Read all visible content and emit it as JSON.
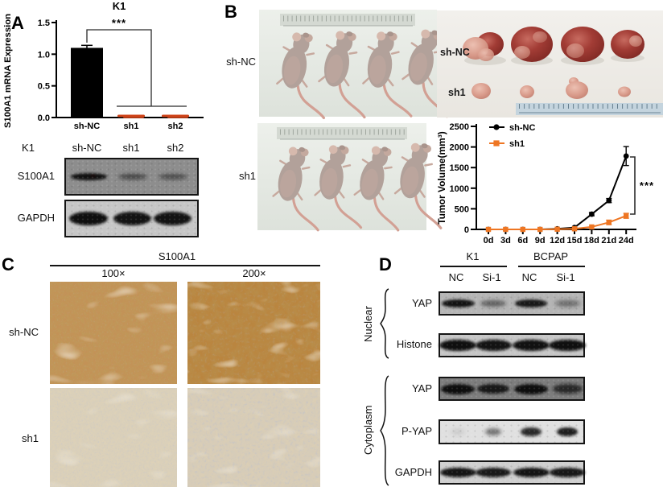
{
  "panels": {
    "A": {
      "label": "A",
      "blot": {
        "cell_line": "K1",
        "lanes": [
          "sh-NC",
          "sh1",
          "sh2"
        ],
        "rows": [
          {
            "label": "S100A1",
            "bands": [
              0.95,
              0.55,
              0.5
            ]
          },
          {
            "label": "GAPDH",
            "bands": [
              0.97,
              0.95,
              0.95
            ]
          }
        ]
      }
    },
    "B": {
      "label": "B",
      "mice_photos": [
        {
          "group": "sh-NC"
        },
        {
          "group": "sh1"
        }
      ],
      "tumor_photo": {
        "groups": [
          "sh-NC",
          "sh1"
        ]
      }
    },
    "C": {
      "label": "C",
      "header": "S100A1",
      "magnifications": [
        "100×",
        "200×"
      ],
      "rows": [
        "sh-NC",
        "sh1"
      ]
    },
    "D": {
      "label": "D",
      "cell_lines": [
        "K1",
        "BCPAP"
      ],
      "lanes": [
        "NC",
        "Si-1",
        "NC",
        "Si-1"
      ],
      "groups": [
        {
          "name": "Nuclear",
          "rows": [
            {
              "label": "YAP",
              "bands": [
                0.95,
                0.5,
                0.92,
                0.45
              ]
            },
            {
              "label": "Histone",
              "bands": [
                0.97,
                0.95,
                0.96,
                0.97
              ]
            }
          ]
        },
        {
          "name": "Cytoplasm",
          "rows": [
            {
              "label": "YAP",
              "bands": [
                0.97,
                0.88,
                0.97,
                0.75
              ]
            },
            {
              "label": "P-YAP",
              "bands": [
                0.12,
                0.5,
                0.85,
                0.9
              ]
            },
            {
              "label": "GAPDH",
              "bands": [
                0.95,
                0.92,
                0.95,
                0.93
              ]
            }
          ]
        }
      ]
    }
  },
  "chart_data": [
    {
      "type": "bar",
      "title": "K1",
      "xlabel": "",
      "ylabel": "S100A1 mRNA Expression",
      "categories": [
        "sh-NC",
        "sh1",
        "sh2"
      ],
      "values": [
        1.1,
        0.02,
        0.02
      ],
      "errors": [
        0.04,
        0.015,
        0.015
      ],
      "bar_colors": [
        "#000000",
        "#d0451b",
        "#d0451b"
      ],
      "ylim": [
        0,
        1.5
      ],
      "yticks": [
        0.0,
        0.5,
        1.0,
        1.5
      ],
      "ytick_labels": [
        "0.0",
        "0.5",
        "1.0",
        "1.5"
      ],
      "significance": "***",
      "grid": false
    },
    {
      "type": "line",
      "title": "",
      "xlabel": "",
      "ylabel": "Tumor Volume(mm³)",
      "x": [
        "0d",
        "3d",
        "6d",
        "9d",
        "12d",
        "15d",
        "18d",
        "21d",
        "24d"
      ],
      "series": [
        {
          "name": "sh-NC",
          "color": "#000000",
          "marker": "circle",
          "values": [
            0,
            0,
            0,
            0,
            15,
            45,
            370,
            700,
            1780
          ],
          "errors": [
            0,
            0,
            0,
            0,
            10,
            15,
            40,
            50,
            230
          ]
        },
        {
          "name": "sh1",
          "color": "#ee7623",
          "marker": "square",
          "values": [
            0,
            0,
            0,
            0,
            5,
            15,
            60,
            170,
            330
          ],
          "errors": [
            0,
            0,
            0,
            0,
            5,
            10,
            25,
            55,
            60
          ]
        }
      ],
      "ylim": [
        0,
        2500
      ],
      "yticks": [
        0,
        500,
        1000,
        1500,
        2000,
        2500
      ],
      "legend_position": "top-left",
      "significance": "***",
      "grid": false
    }
  ]
}
